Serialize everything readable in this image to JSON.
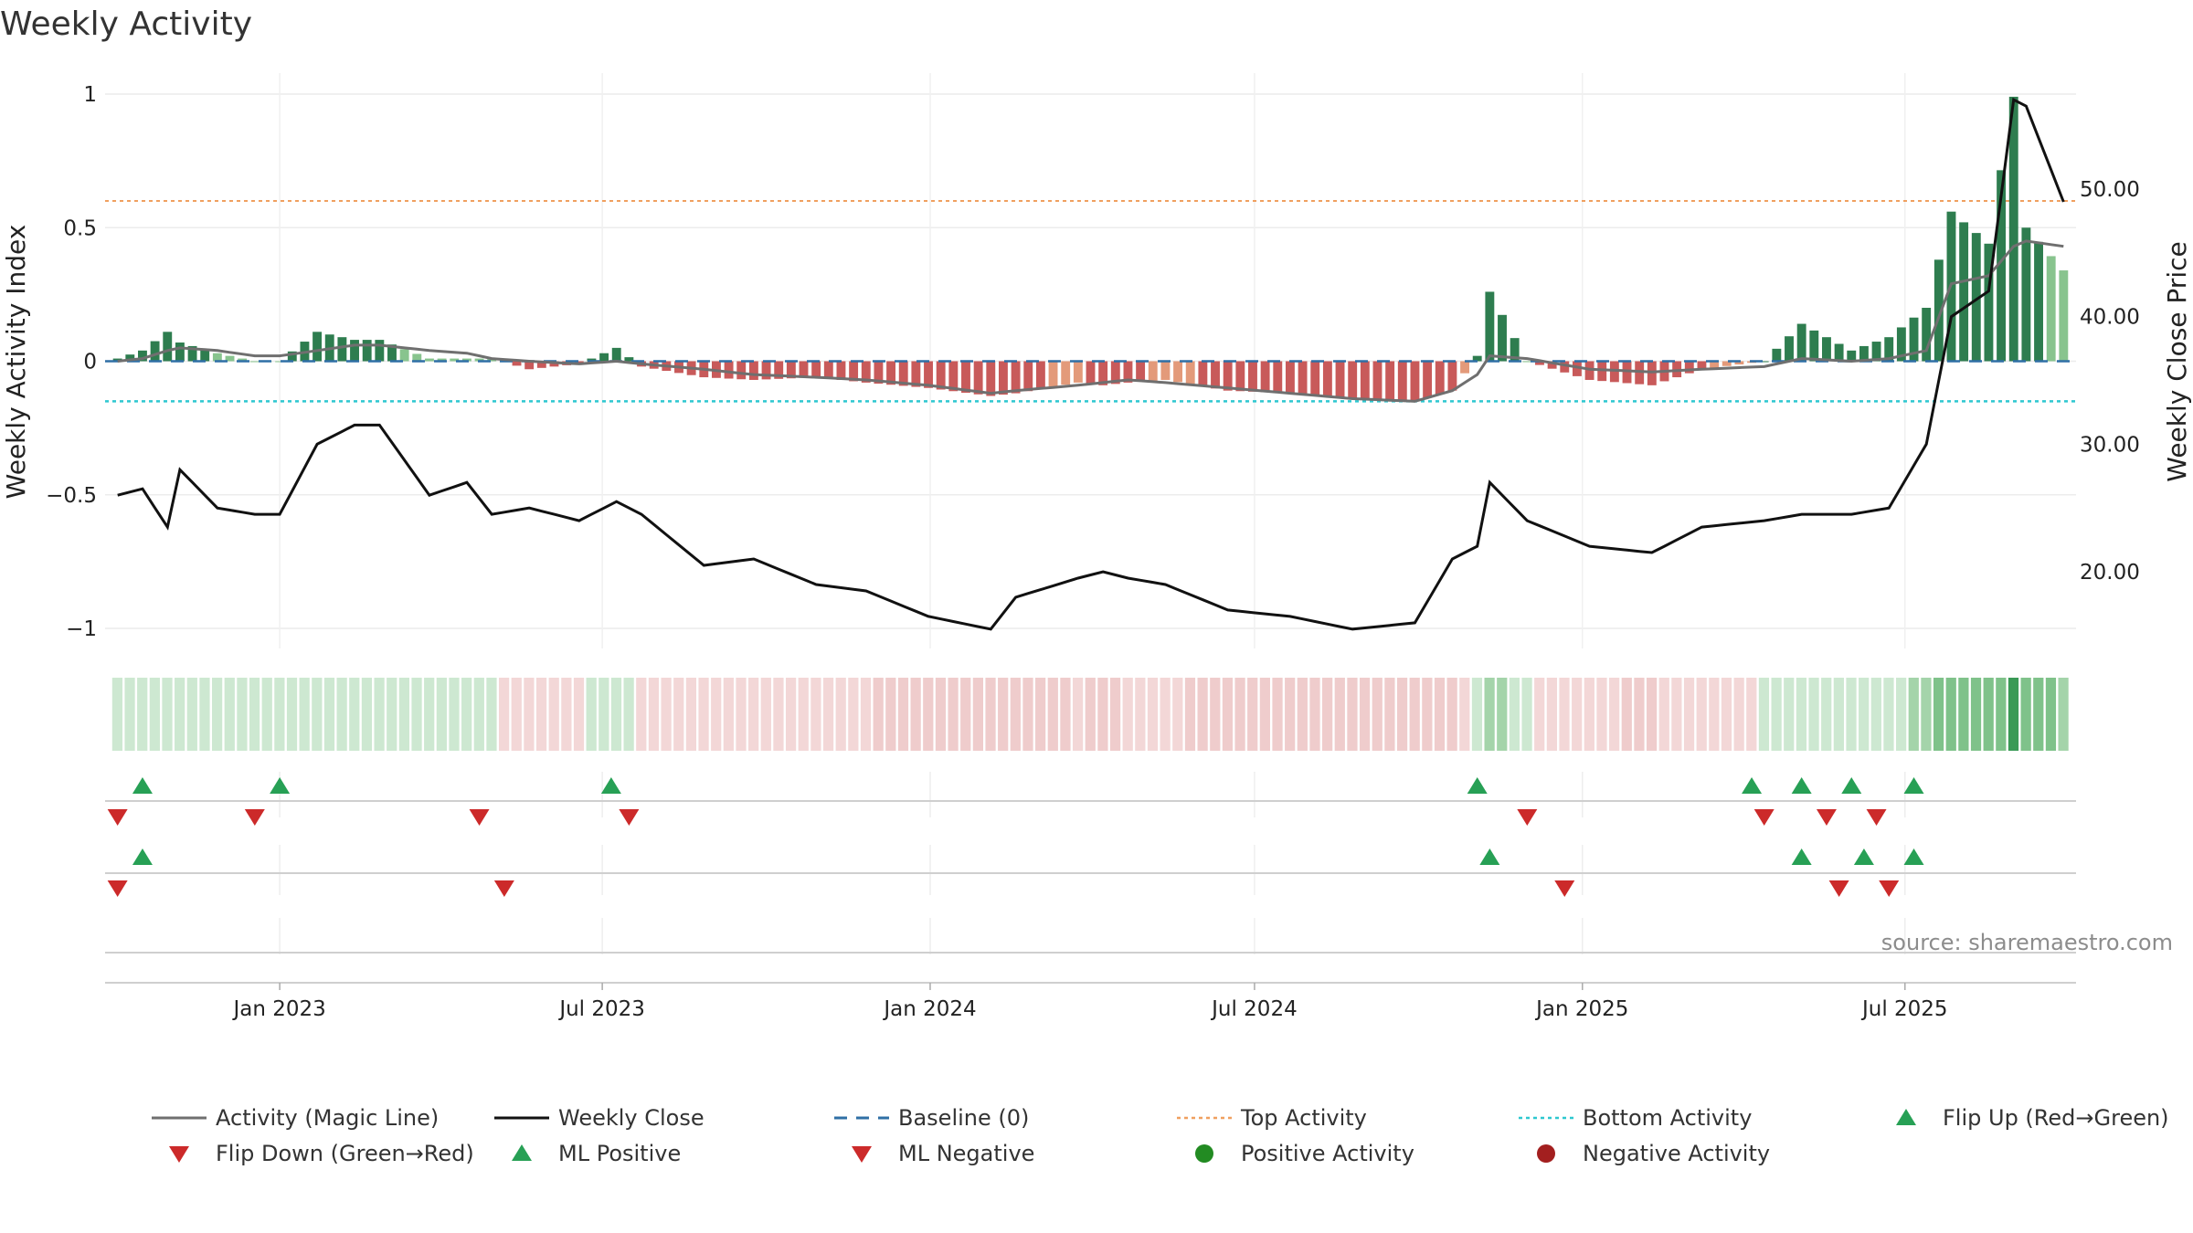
{
  "title": "Weekly Activity",
  "source_note": "source: sharemaestro.com",
  "colors": {
    "magic_line": "#6f6f6f",
    "close_line": "#111111",
    "baseline": "#2f6fa5",
    "top_line": "#f0a060",
    "bottom_line": "#2ec8d0",
    "pos_dark": "#2e7d4f",
    "pos_light": "#88c48e",
    "neg_dark": "#c85a5a",
    "neg_light": "#e39a7a",
    "flip_up": "#27a055",
    "flip_down": "#cc2a2a",
    "pos_dot": "#228b22",
    "neg_dot": "#a31f1f"
  },
  "chart_data": {
    "type": "bar",
    "title": "Weekly Activity",
    "ylabel_left": "Weekly Activity Index",
    "ylabel_right": "Weekly Close Price",
    "ylim_left": [
      -1.1,
      1.1
    ],
    "ylim_right": [
      13.9,
      61.9
    ],
    "left_ticks": [
      "1",
      "0.5",
      "0",
      "−0.5",
      "−1"
    ],
    "left_tick_values": [
      1,
      0.5,
      0,
      -0.5,
      -1
    ],
    "right_ticks": [
      "50.00",
      "40.00",
      "30.00",
      "20.00"
    ],
    "right_tick_values": [
      50,
      40,
      30,
      20
    ],
    "x_start": "2022-09-25",
    "x_end": "2025-10-05",
    "x_ticks": [
      {
        "date": "2023-01-01",
        "label": "Jan 2023"
      },
      {
        "date": "2023-07-01",
        "label": "Jul 2023"
      },
      {
        "date": "2024-01-01",
        "label": "Jan 2024"
      },
      {
        "date": "2024-07-01",
        "label": "Jul 2024"
      },
      {
        "date": "2025-01-01",
        "label": "Jan 2025"
      },
      {
        "date": "2025-07-01",
        "label": "Jul 2025"
      }
    ],
    "top_activity": 0.6,
    "bottom_activity": -0.15,
    "grid": true,
    "legend_position": "bottom",
    "series_points": [
      [
        "2022-10-02",
        0.01,
        0.0,
        26.0
      ],
      [
        "2022-10-16",
        0.04,
        0.01,
        26.5
      ],
      [
        "2022-10-30",
        0.11,
        0.04,
        23.5
      ],
      [
        "2022-11-06",
        0.07,
        0.05,
        28.0
      ],
      [
        "2022-11-27",
        0.03,
        0.04,
        25.0
      ],
      [
        "2022-12-18",
        0.0,
        0.02,
        24.5
      ],
      [
        "2023-01-01",
        0.0,
        0.02,
        24.5
      ],
      [
        "2023-01-22",
        0.11,
        0.04,
        30.0
      ],
      [
        "2023-02-12",
        0.08,
        0.06,
        31.5
      ],
      [
        "2023-02-26",
        0.08,
        0.06,
        31.5
      ],
      [
        "2023-03-26",
        0.01,
        0.04,
        26.0
      ],
      [
        "2023-04-16",
        0.01,
        0.03,
        27.0
      ],
      [
        "2023-04-30",
        0.01,
        0.01,
        24.5
      ],
      [
        "2023-05-21",
        -0.03,
        0.0,
        25.0
      ],
      [
        "2023-06-18",
        -0.01,
        -0.01,
        24.0
      ],
      [
        "2023-07-09",
        0.05,
        0.0,
        25.5
      ],
      [
        "2023-07-23",
        -0.02,
        -0.01,
        24.5
      ],
      [
        "2023-08-27",
        -0.06,
        -0.03,
        20.5
      ],
      [
        "2023-09-24",
        -0.07,
        -0.05,
        21.0
      ],
      [
        "2023-10-29",
        -0.06,
        -0.06,
        19.0
      ],
      [
        "2023-11-26",
        -0.08,
        -0.07,
        18.5
      ],
      [
        "2023-12-31",
        -0.1,
        -0.09,
        16.5
      ],
      [
        "2024-02-04",
        -0.13,
        -0.12,
        15.5
      ],
      [
        "2024-02-18",
        -0.12,
        -0.11,
        18.0
      ],
      [
        "2024-03-24",
        -0.08,
        -0.09,
        19.5
      ],
      [
        "2024-04-07",
        -0.09,
        -0.08,
        20.0
      ],
      [
        "2024-04-21",
        -0.08,
        -0.07,
        19.5
      ],
      [
        "2024-05-12",
        -0.07,
        -0.08,
        19.0
      ],
      [
        "2024-06-16",
        -0.11,
        -0.1,
        17.0
      ],
      [
        "2024-07-21",
        -0.12,
        -0.12,
        16.5
      ],
      [
        "2024-08-25",
        -0.14,
        -0.14,
        15.5
      ],
      [
        "2024-09-29",
        -0.15,
        -0.15,
        16.0
      ],
      [
        "2024-10-20",
        -0.11,
        -0.11,
        21.0
      ],
      [
        "2024-11-03",
        0.02,
        -0.05,
        22.0
      ],
      [
        "2024-11-10",
        0.26,
        0.02,
        27.0
      ],
      [
        "2024-12-01",
        0.0,
        0.01,
        24.0
      ],
      [
        "2025-01-05",
        -0.07,
        -0.03,
        22.0
      ],
      [
        "2025-02-09",
        -0.09,
        -0.04,
        21.5
      ],
      [
        "2025-03-09",
        -0.03,
        -0.03,
        23.5
      ],
      [
        "2025-04-13",
        0.0,
        -0.02,
        24.0
      ],
      [
        "2025-05-04",
        0.14,
        0.01,
        24.5
      ],
      [
        "2025-06-01",
        0.04,
        0.0,
        24.5
      ],
      [
        "2025-06-22",
        0.09,
        0.01,
        25.0
      ],
      [
        "2025-07-13",
        0.2,
        0.04,
        30.0
      ],
      [
        "2025-07-27",
        0.56,
        0.29,
        40.0
      ],
      [
        "2025-08-17",
        0.44,
        0.32,
        42.0
      ],
      [
        "2025-08-31",
        0.99,
        0.43,
        57.0
      ],
      [
        "2025-09-07",
        0.5,
        0.45,
        56.5
      ],
      [
        "2025-09-28",
        0.34,
        0.43,
        49.0
      ]
    ],
    "flip_up_row1": [
      "2022-10-16",
      "2023-01-01",
      "2023-07-06",
      "2024-11-03",
      "2025-04-06",
      "2025-05-04",
      "2025-06-01",
      "2025-07-06"
    ],
    "flip_down_row1": [
      "2022-10-02",
      "2022-12-18",
      "2023-04-23",
      "2023-07-16",
      "2024-12-01",
      "2025-04-13",
      "2025-05-18",
      "2025-06-15"
    ],
    "ml_positive_row2": [
      "2022-10-16",
      "2024-11-10",
      "2025-05-04",
      "2025-06-08",
      "2025-07-06"
    ],
    "ml_negative_row2": [
      "2022-10-02",
      "2023-05-07",
      "2024-12-22",
      "2025-05-25",
      "2025-06-22"
    ]
  },
  "legend": {
    "magic_line": "Activity (Magic Line)",
    "weekly_close": "Weekly Close",
    "baseline": "Baseline (0)",
    "top_activity": "Top Activity",
    "bottom_activity": "Bottom Activity",
    "flip_up": "Flip Up (Red→Green)",
    "flip_down": "Flip Down (Green→Red)",
    "ml_positive": "ML Positive",
    "ml_negative": "ML Negative",
    "positive_activity": "Positive Activity",
    "negative_activity": "Negative Activity"
  }
}
